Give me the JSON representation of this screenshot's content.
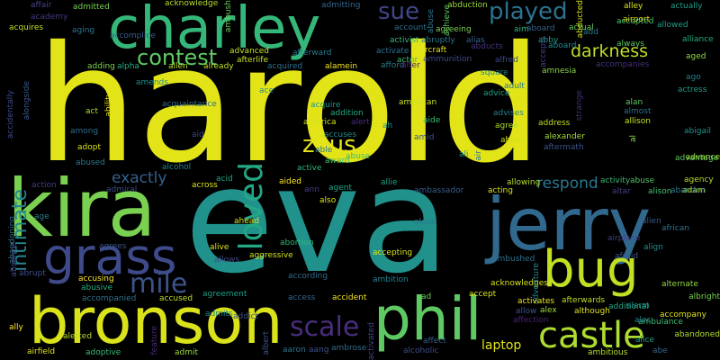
{
  "words": [
    {
      "text": "harold",
      "color": "#e3e418"
    },
    {
      "text": "eva",
      "color": "#21918c"
    },
    {
      "text": "kira",
      "color": "#7ad151"
    },
    {
      "text": "jerry",
      "color": "#31688e"
    },
    {
      "text": "bronson",
      "color": "#d9e21a"
    },
    {
      "text": "charley",
      "color": "#35b779"
    },
    {
      "text": "phil",
      "color": "#5ec962"
    },
    {
      "text": "grass",
      "color": "#3e4a89"
    },
    {
      "text": "bug",
      "color": "#c2df23"
    },
    {
      "text": "castle",
      "color": "#addc30"
    },
    {
      "text": "played",
      "color": "#2c728e"
    },
    {
      "text": "loved",
      "color": "#22a884"
    },
    {
      "text": "intimate",
      "color": "#24878e"
    },
    {
      "text": "mile",
      "color": "#3b528b"
    },
    {
      "text": "scale",
      "color": "#472d7b"
    },
    {
      "text": "zeus",
      "color": "#e6e51a"
    },
    {
      "text": "contest",
      "color": "#5ec962"
    },
    {
      "text": "sue",
      "color": "#404688"
    },
    {
      "text": "darkness",
      "color": "#bfdf25"
    },
    {
      "text": "respond",
      "color": "#2a788e"
    },
    {
      "text": "exactly",
      "color": "#34618d"
    },
    {
      "text": "laptop",
      "color": "#dfe318"
    },
    {
      "text": "affair",
      "color": "#414487"
    },
    {
      "text": "admitted",
      "color": "#75d054"
    },
    {
      "text": "acknowledge",
      "color": "#b5de2b"
    },
    {
      "text": "admitting",
      "color": "#33638d"
    },
    {
      "text": "abduction",
      "color": "#9bd93c"
    },
    {
      "text": "alley",
      "color": "#dde318"
    },
    {
      "text": "actually",
      "color": "#1f9e89"
    },
    {
      "text": "academy",
      "color": "#443983"
    },
    {
      "text": "acquires",
      "color": "#bddf26"
    },
    {
      "text": "aging",
      "color": "#2b758e"
    },
    {
      "text": "accomplice",
      "color": "#355e8d"
    },
    {
      "text": "ambush",
      "color": "#6ccd5a"
    },
    {
      "text": "advanced",
      "color": "#c5e021"
    },
    {
      "text": "afterlife",
      "color": "#c8e020"
    },
    {
      "text": "afterward",
      "color": "#297b8e"
    },
    {
      "text": "account",
      "color": "#2e6e8e"
    },
    {
      "text": "agreeing",
      "color": "#7ad151"
    },
    {
      "text": "aim",
      "color": "#31b57b"
    },
    {
      "text": "actual",
      "color": "#65cb5e"
    },
    {
      "text": "airport",
      "color": "#e7e419"
    },
    {
      "text": "allowed",
      "color": "#1fa088"
    },
    {
      "text": "alliance",
      "color": "#25ab82"
    },
    {
      "text": "activist",
      "color": "#31b57b"
    },
    {
      "text": "abruptly",
      "color": "#2a788e"
    },
    {
      "text": "alias",
      "color": "#34608d"
    },
    {
      "text": "abby",
      "color": "#1e9c89"
    },
    {
      "text": "always",
      "color": "#5ec962"
    },
    {
      "text": "achieve",
      "color": "#5ec962"
    },
    {
      "text": "aboard",
      "color": "#23898e"
    },
    {
      "text": "aged",
      "color": "#8ed645"
    },
    {
      "text": "activate",
      "color": "#2d708e"
    },
    {
      "text": "aircraft",
      "color": "#e7e419"
    },
    {
      "text": "abducts",
      "color": "#46327e"
    },
    {
      "text": "ago",
      "color": "#26828e"
    },
    {
      "text": "ammunition",
      "color": "#3e4989"
    },
    {
      "text": "alfred",
      "color": "#3f4788"
    },
    {
      "text": "amnesia",
      "color": "#8bd646"
    },
    {
      "text": "accompanies",
      "color": "#472f7d"
    },
    {
      "text": "adding",
      "color": "#7fd34e"
    },
    {
      "text": "alpha",
      "color": "#26ad81"
    },
    {
      "text": "allen",
      "color": "#b8de29"
    },
    {
      "text": "already",
      "color": "#bddf26"
    },
    {
      "text": "acquired",
      "color": "#2c728e"
    },
    {
      "text": "alamein",
      "color": "#f1e51d"
    },
    {
      "text": "afford",
      "color": "#287c8e"
    },
    {
      "text": "alter",
      "color": "#482173"
    },
    {
      "text": "square",
      "color": "#27808e"
    },
    {
      "text": "adult",
      "color": "#2a768e"
    },
    {
      "text": "advice",
      "color": "#1fa088"
    },
    {
      "text": "actress",
      "color": "#1e9b8a"
    },
    {
      "text": "amends",
      "color": "#21908d"
    },
    {
      "text": "ace",
      "color": "#23898e"
    },
    {
      "text": "acquaintance",
      "color": "#2e6f8e"
    },
    {
      "text": "act",
      "color": "#a8db34"
    },
    {
      "text": "ability",
      "color": "#e0e318"
    },
    {
      "text": "acquire",
      "color": "#1f988b"
    },
    {
      "text": "addition",
      "color": "#23a983"
    },
    {
      "text": "america",
      "color": "#d0e11c"
    },
    {
      "text": "alert",
      "color": "#46307e"
    },
    {
      "text": "american",
      "color": "#cae11f"
    },
    {
      "text": "advises",
      "color": "#26818e"
    },
    {
      "text": "alan",
      "color": "#5cc863"
    },
    {
      "text": "almost",
      "color": "#2e6e8e"
    },
    {
      "text": "allison",
      "color": "#c5e021"
    },
    {
      "text": "abigail",
      "color": "#21918c"
    },
    {
      "text": "among",
      "color": "#2f6c8e"
    },
    {
      "text": "aid",
      "color": "#3f4788"
    },
    {
      "text": "accuses",
      "color": "#228c8d"
    },
    {
      "text": "ah",
      "color": "#1f948c"
    },
    {
      "text": "aide",
      "color": "#3aba76"
    },
    {
      "text": "agree",
      "color": "#b0dd2f"
    },
    {
      "text": "address",
      "color": "#bddf26"
    },
    {
      "text": "alexander",
      "color": "#a2da37"
    },
    {
      "text": "aftermath",
      "color": "#3b528b"
    },
    {
      "text": "abbey",
      "color": "#d0e11c"
    },
    {
      "text": "amid",
      "color": "#39558c"
    },
    {
      "text": "al",
      "color": "#8bd646"
    },
    {
      "text": "adopt",
      "color": "#d8e219"
    },
    {
      "text": "ali",
      "color": "#20928c"
    },
    {
      "text": "air",
      "color": "#2c728e"
    },
    {
      "text": "advantage",
      "color": "#5cc863"
    },
    {
      "text": "abused",
      "color": "#2a788e"
    },
    {
      "text": "alcohol",
      "color": "#25848e"
    },
    {
      "text": "active",
      "color": "#32b67a"
    },
    {
      "text": "able",
      "color": "#2c738e"
    },
    {
      "text": "award",
      "color": "#4ac16d"
    },
    {
      "text": "abuse",
      "color": "#3bbb75"
    },
    {
      "text": "advance",
      "color": "#a0da39"
    },
    {
      "text": "action",
      "color": "#433d84"
    },
    {
      "text": "admiral",
      "color": "#3c4f8a"
    },
    {
      "text": "across",
      "color": "#d8e219"
    },
    {
      "text": "acid",
      "color": "#21a685"
    },
    {
      "text": "aided",
      "color": "#fde725"
    },
    {
      "text": "ann",
      "color": "#433e85"
    },
    {
      "text": "agent",
      "color": "#22a785"
    },
    {
      "text": "allie",
      "color": "#1fa287"
    },
    {
      "text": "allowing",
      "color": "#b5de2b"
    },
    {
      "text": "acting",
      "color": "#d8e219"
    },
    {
      "text": "activity",
      "color": "#3aba76"
    },
    {
      "text": "abuse",
      "color": "#50c46a"
    },
    {
      "text": "agency",
      "color": "#b2dd2d"
    },
    {
      "text": "adam",
      "color": "#c5e021"
    },
    {
      "text": "altar",
      "color": "#433e85"
    },
    {
      "text": "alison",
      "color": "#42be71"
    },
    {
      "text": "abandon",
      "color": "#2a788e"
    },
    {
      "text": "also",
      "color": "#dde318"
    },
    {
      "text": "ambassador",
      "color": "#355f8d"
    },
    {
      "text": "age",
      "color": "#25838e"
    },
    {
      "text": "abandoning",
      "color": "#2e6e8e"
    },
    {
      "text": "ahead",
      "color": "#d8e219"
    },
    {
      "text": "alone",
      "color": "#297b8e"
    },
    {
      "text": "alien",
      "color": "#39568c"
    },
    {
      "text": "african",
      "color": "#2b748e"
    },
    {
      "text": "airplane",
      "color": "#414287"
    },
    {
      "text": "alive",
      "color": "#e2e418"
    },
    {
      "text": "agrees",
      "color": "#3a548c"
    },
    {
      "text": "abortion",
      "color": "#32b67a"
    },
    {
      "text": "allows",
      "color": "#3e4989"
    },
    {
      "text": "aggressive",
      "color": "#d5e21a"
    },
    {
      "text": "accepting",
      "color": "#d8e219"
    },
    {
      "text": "afraid",
      "color": "#38598c"
    },
    {
      "text": "align",
      "color": "#228b8d"
    },
    {
      "text": "absence",
      "color": "#3f4889"
    },
    {
      "text": "abrupt",
      "color": "#3d4e8a"
    },
    {
      "text": "accusing",
      "color": "#fde725"
    },
    {
      "text": "abusive",
      "color": "#26ad81"
    },
    {
      "text": "according",
      "color": "#2f6c8e"
    },
    {
      "text": "ambition",
      "color": "#25848e"
    },
    {
      "text": "ambushed",
      "color": "#2e6f8e"
    },
    {
      "text": "acknowledges",
      "color": "#d8e219"
    },
    {
      "text": "adventure",
      "color": "#24878e"
    },
    {
      "text": "alternate",
      "color": "#93d741"
    },
    {
      "text": "accompanied",
      "color": "#2d718e"
    },
    {
      "text": "accused",
      "color": "#bddf26"
    },
    {
      "text": "agreement",
      "color": "#1f9e89"
    },
    {
      "text": "access",
      "color": "#31678e"
    },
    {
      "text": "accident",
      "color": "#f1e51d"
    },
    {
      "text": "ad",
      "color": "#6ccd5a"
    },
    {
      "text": "accept",
      "color": "#d8e219"
    },
    {
      "text": "activates",
      "color": "#f1e51d"
    },
    {
      "text": "afterwards",
      "color": "#bddf26"
    },
    {
      "text": "allow",
      "color": "#3b528b"
    },
    {
      "text": "although",
      "color": "#dfe318"
    },
    {
      "text": "alex",
      "color": "#9dd93b"
    },
    {
      "text": "additional",
      "color": "#22a785"
    },
    {
      "text": "albright",
      "color": "#7ad151"
    },
    {
      "text": "alarm",
      "color": "#21918c"
    },
    {
      "text": "accompany",
      "color": "#dde318"
    },
    {
      "text": "ambulance",
      "color": "#3dbc74"
    },
    {
      "text": "alec",
      "color": "#26828e"
    },
    {
      "text": "ally",
      "color": "#fde725"
    },
    {
      "text": "alerted",
      "color": "#bddf26"
    },
    {
      "text": "admits",
      "color": "#23898e"
    },
    {
      "text": "addict",
      "color": "#3b528b"
    },
    {
      "text": "affection",
      "color": "#482475"
    },
    {
      "text": "abandoned",
      "color": "#b2dd2d"
    },
    {
      "text": "alice",
      "color": "#1fa088"
    },
    {
      "text": "airfield",
      "color": "#dfe318"
    },
    {
      "text": "adoptive",
      "color": "#3aba76"
    },
    {
      "text": "feature",
      "color": "#482878"
    },
    {
      "text": "admit",
      "color": "#9bd93c"
    },
    {
      "text": "albert",
      "color": "#3b528b"
    },
    {
      "text": "aaron",
      "color": "#2c728e"
    },
    {
      "text": "aang",
      "color": "#3b528b"
    },
    {
      "text": "ambrose",
      "color": "#2f6c8e"
    },
    {
      "text": "activated",
      "color": "#404588"
    },
    {
      "text": "alcoholic",
      "color": "#3d4e8a"
    },
    {
      "text": "affect",
      "color": "#355e8d"
    },
    {
      "text": "ambitious",
      "color": "#b5de2b"
    },
    {
      "text": "abe",
      "color": "#31678e"
    },
    {
      "text": "accidentally",
      "color": "#3e4989"
    },
    {
      "text": "alongside",
      "color": "#38598c"
    },
    {
      "text": "abducted",
      "color": "#d2e21b"
    },
    {
      "text": "accepted",
      "color": "#50c46a"
    },
    {
      "text": "accepts",
      "color": "#433e85"
    },
    {
      "text": "add",
      "color": "#2a788e"
    },
    {
      "text": "aboard",
      "color": "#33638d"
    },
    {
      "text": "actor",
      "color": "#3aba76"
    },
    {
      "text": "abuse",
      "color": "#2a788e"
    },
    {
      "text": "strange",
      "color": "#472c7a"
    }
  ]
}
